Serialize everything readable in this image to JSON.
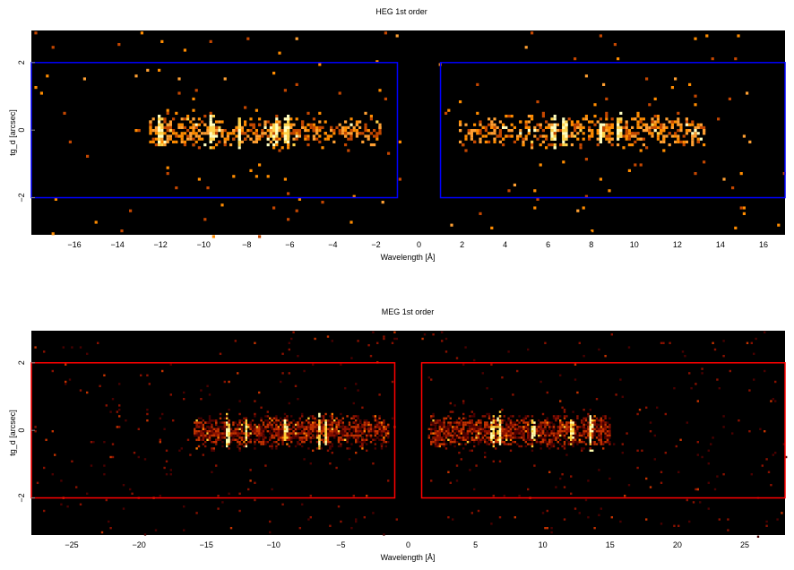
{
  "colors": {
    "background": "#000000",
    "heg_region": "#0000ff",
    "meg_region": "#ff0000",
    "heg_counts": [
      "#c44700",
      "#ff8c00",
      "#ffa033",
      "#ffd24a",
      "#ffffc0"
    ],
    "meg_counts": [
      "#4a0000",
      "#8a1100",
      "#c43300",
      "#ff7a00",
      "#ffcc33",
      "#ffffb0"
    ]
  },
  "chart_data": [
    {
      "type": "heatmap",
      "title": "HEG 1st order",
      "xlabel": "Wavelength [Å]",
      "ylabel": "tg_d [arcsec]",
      "xlim": [
        -18,
        17
      ],
      "ylim": [
        -3.1,
        2.95
      ],
      "xticks": [
        -16,
        -14,
        -12,
        -10,
        -8,
        -6,
        -4,
        -2,
        0,
        2,
        4,
        6,
        8,
        10,
        12,
        14,
        16
      ],
      "xtick_labels": [
        "−16",
        "−14",
        "−12",
        "−10",
        "−8",
        "−6",
        "−4",
        "−2",
        "0",
        "2",
        "4",
        "6",
        "8",
        "10",
        "12",
        "14",
        "16"
      ],
      "yticks": [
        -2,
        0,
        2
      ],
      "ytick_labels": [
        "−2",
        "0",
        "2"
      ],
      "regions": [
        {
          "x": [
            -18,
            -1
          ],
          "y": [
            -2,
            2
          ]
        },
        {
          "x": [
            1,
            17
          ],
          "y": [
            -2,
            2
          ]
        }
      ],
      "bright_lines": [
        -12.1,
        -9.7,
        -8.4,
        -6.7,
        -6.2,
        6.2,
        6.7,
        8.4,
        9.2
      ],
      "source_core": [
        {
          "x_range": [
            -12.6,
            -1.8
          ]
        },
        {
          "x_range": [
            1.8,
            13.2
          ]
        }
      ]
    },
    {
      "type": "heatmap",
      "title": "MEG 1st order",
      "xlabel": "Wavelength [Å]",
      "ylabel": "tg_d [arcsec]",
      "xlim": [
        -28,
        28
      ],
      "ylim": [
        -3.1,
        2.95
      ],
      "xticks": [
        -25,
        -20,
        -15,
        -10,
        -5,
        0,
        5,
        10,
        15,
        20,
        25
      ],
      "xtick_labels": [
        "−25",
        "−20",
        "−15",
        "−10",
        "−5",
        "0",
        "5",
        "10",
        "15",
        "20",
        "25"
      ],
      "yticks": [
        -2,
        0,
        2
      ],
      "ytick_labels": [
        "−2",
        "0",
        "2"
      ],
      "regions": [
        {
          "x": [
            -28,
            -1
          ],
          "y": [
            -2,
            2
          ]
        },
        {
          "x": [
            1,
            28
          ],
          "y": [
            -2,
            2
          ]
        }
      ],
      "bright_lines": [
        -13.5,
        -12.1,
        -9.2,
        -6.7,
        -6.2,
        6.2,
        6.7,
        9.2,
        12.1,
        13.5
      ],
      "source_core": [
        {
          "x_range": [
            -16,
            -1.5
          ]
        },
        {
          "x_range": [
            1.5,
            15
          ]
        }
      ]
    }
  ]
}
